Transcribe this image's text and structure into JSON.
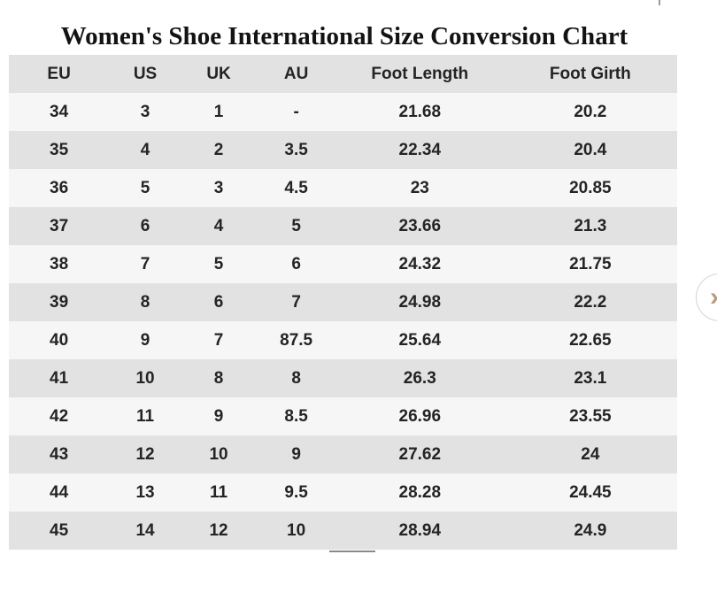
{
  "page": {
    "title": "Women's Shoe International Size Conversion Chart"
  },
  "chart_data": {
    "type": "table",
    "title": "Women's Shoe International Size Conversion Chart",
    "columns": [
      "EU",
      "US",
      "UK",
      "AU",
      "Foot Length",
      "Foot Girth"
    ],
    "rows": [
      [
        "34",
        "3",
        "1",
        "-",
        "21.68",
        "20.2"
      ],
      [
        "35",
        "4",
        "2",
        "3.5",
        "22.34",
        "20.4"
      ],
      [
        "36",
        "5",
        "3",
        "4.5",
        "23",
        "20.85"
      ],
      [
        "37",
        "6",
        "4",
        "5",
        "23.66",
        "21.3"
      ],
      [
        "38",
        "7",
        "5",
        "6",
        "24.32",
        "21.75"
      ],
      [
        "39",
        "8",
        "6",
        "7",
        "24.98",
        "22.2"
      ],
      [
        "40",
        "9",
        "7",
        "87.5",
        "25.64",
        "22.65"
      ],
      [
        "41",
        "10",
        "8",
        "8",
        "26.3",
        "23.1"
      ],
      [
        "42",
        "11",
        "9",
        "8.5",
        "26.96",
        "23.55"
      ],
      [
        "43",
        "12",
        "10",
        "9",
        "27.62",
        "24"
      ],
      [
        "44",
        "13",
        "11",
        "9.5",
        "28.28",
        "24.45"
      ],
      [
        "45",
        "14",
        "12",
        "10",
        "28.94",
        "24.9"
      ]
    ]
  },
  "carousel": {
    "next_label": "›"
  },
  "colors": {
    "header_bg": "#e2e2e2",
    "row_light_bg": "#f5f6f5",
    "row_dark_bg": "#e2e2e2",
    "text": "#242424",
    "chevron": "#b79b80",
    "page_bg": "#ffffff"
  }
}
